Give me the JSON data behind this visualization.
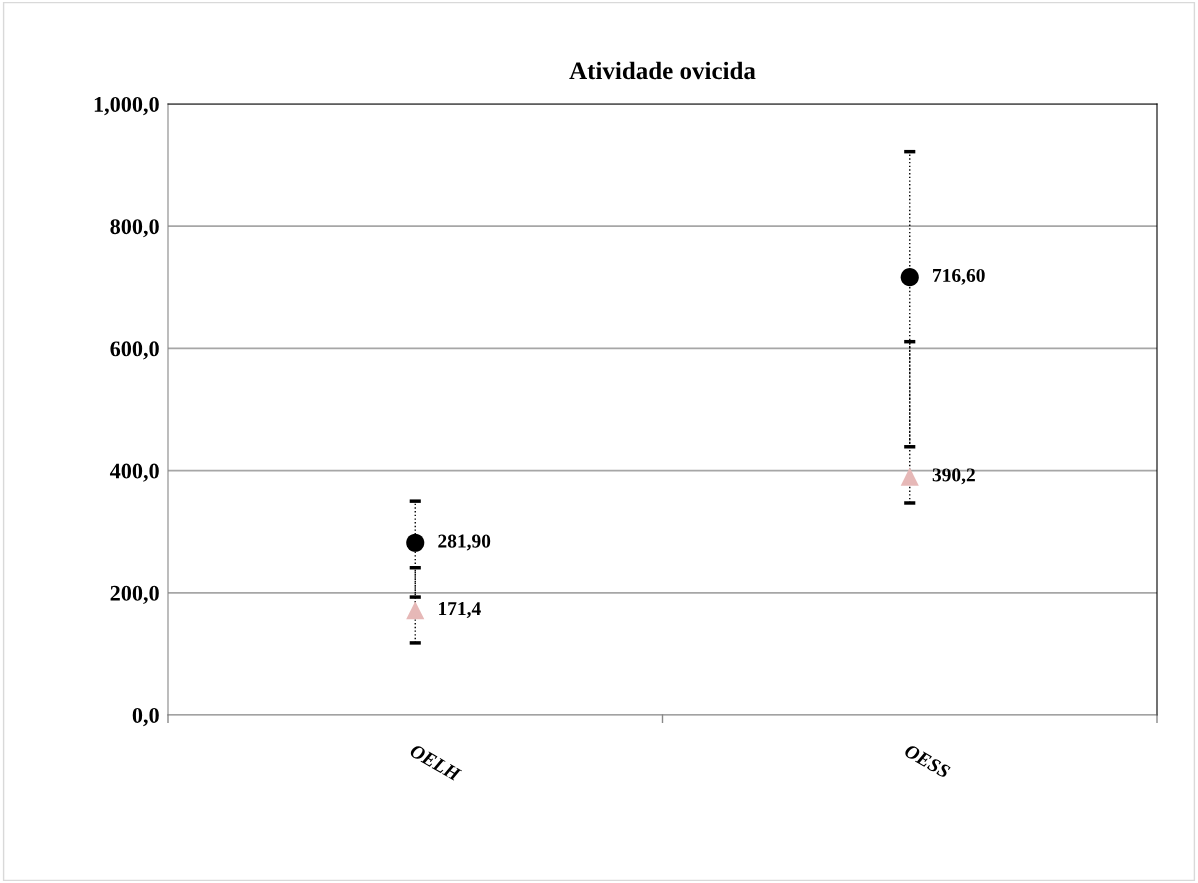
{
  "chart_data": {
    "type": "scatter",
    "title": "Atividade ovicida",
    "categories": [
      "OELH",
      "OESS"
    ],
    "series": [
      {
        "color": "#000000",
        "marker": "circle",
        "values": [
          281.9,
          716.6
        ],
        "value_labels": [
          "281,90",
          "716,60"
        ],
        "errors": [
          [
            193,
            350
          ],
          [
            439,
            922
          ]
        ]
      },
      {
        "color": "#e6b8b7",
        "marker": "triangle",
        "values": [
          171.4,
          390.2
        ],
        "value_labels": [
          "171,4",
          "390,2"
        ],
        "errors": [
          [
            118,
            241
          ],
          [
            347,
            611
          ]
        ]
      }
    ],
    "ylim": [
      0,
      1000
    ],
    "yticks": [
      {
        "value": 0,
        "label": "0,0"
      },
      {
        "value": 200,
        "label": "200,0"
      },
      {
        "value": 400,
        "label": "400,0"
      },
      {
        "value": 600,
        "label": "600,0"
      },
      {
        "value": 800,
        "label": "800,0"
      },
      {
        "value": 1000,
        "label": "1,000,0"
      }
    ],
    "grid": "y",
    "legend": false,
    "line_style": "dotted"
  }
}
